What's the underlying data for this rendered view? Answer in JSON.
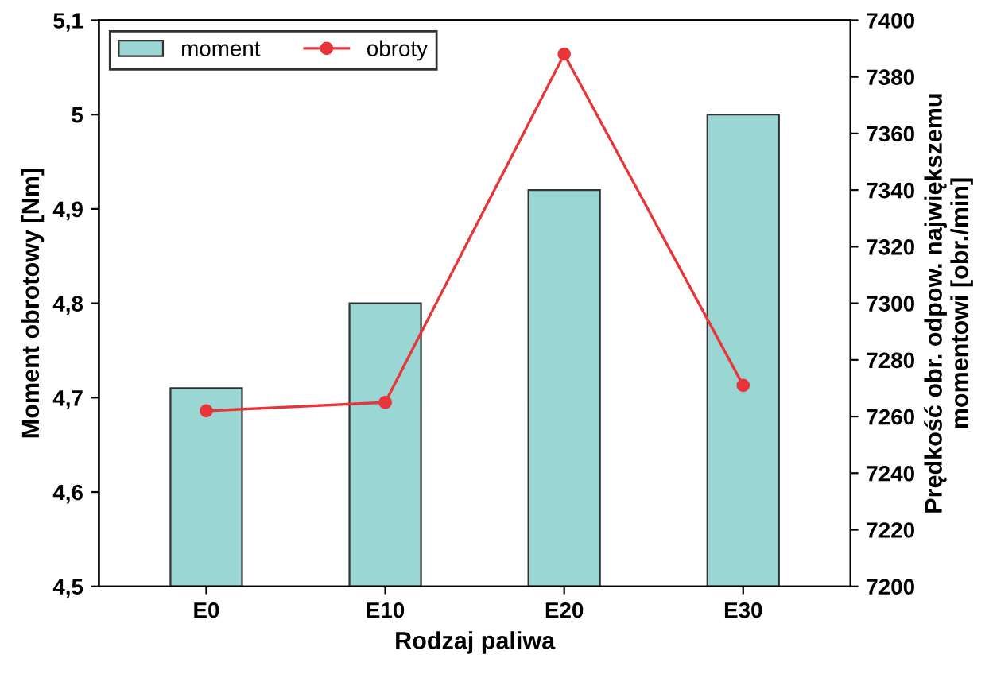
{
  "chart_data": {
    "type": "bar",
    "xlabel": "Rodzaj paliwa",
    "ylabel": "Moment obrotowy [Nm]",
    "y2label": "Prędkość obr. odpow. największemu\nmomentowi [obr./min]",
    "categories": [
      "E0",
      "E10",
      "E20",
      "E30"
    ],
    "series": [
      {
        "name": "moment",
        "color": "#99d6d4",
        "values": [
          4.71,
          4.8,
          4.92,
          5.0
        ]
      },
      {
        "name": "obroty",
        "type": "line",
        "axis": "y2",
        "color": "#e8353a",
        "marker": "circle",
        "values": [
          7262,
          7265,
          7388,
          7271
        ]
      }
    ],
    "ylim": [
      4.5,
      5.1
    ],
    "yticks": [
      {
        "value": 4.5,
        "label": "4,5"
      },
      {
        "value": 4.6,
        "label": "4,6"
      },
      {
        "value": 4.7,
        "label": "4,7"
      },
      {
        "value": 4.8,
        "label": "4,8"
      },
      {
        "value": 4.9,
        "label": "4,9"
      },
      {
        "value": 5.0,
        "label": "5"
      },
      {
        "value": 5.1,
        "label": "5,1"
      }
    ],
    "y2lim": [
      7200,
      7400
    ],
    "y2ticks": [
      7200,
      7220,
      7240,
      7260,
      7280,
      7300,
      7320,
      7340,
      7360,
      7380,
      7400
    ],
    "legend": "top left",
    "grid": false
  }
}
